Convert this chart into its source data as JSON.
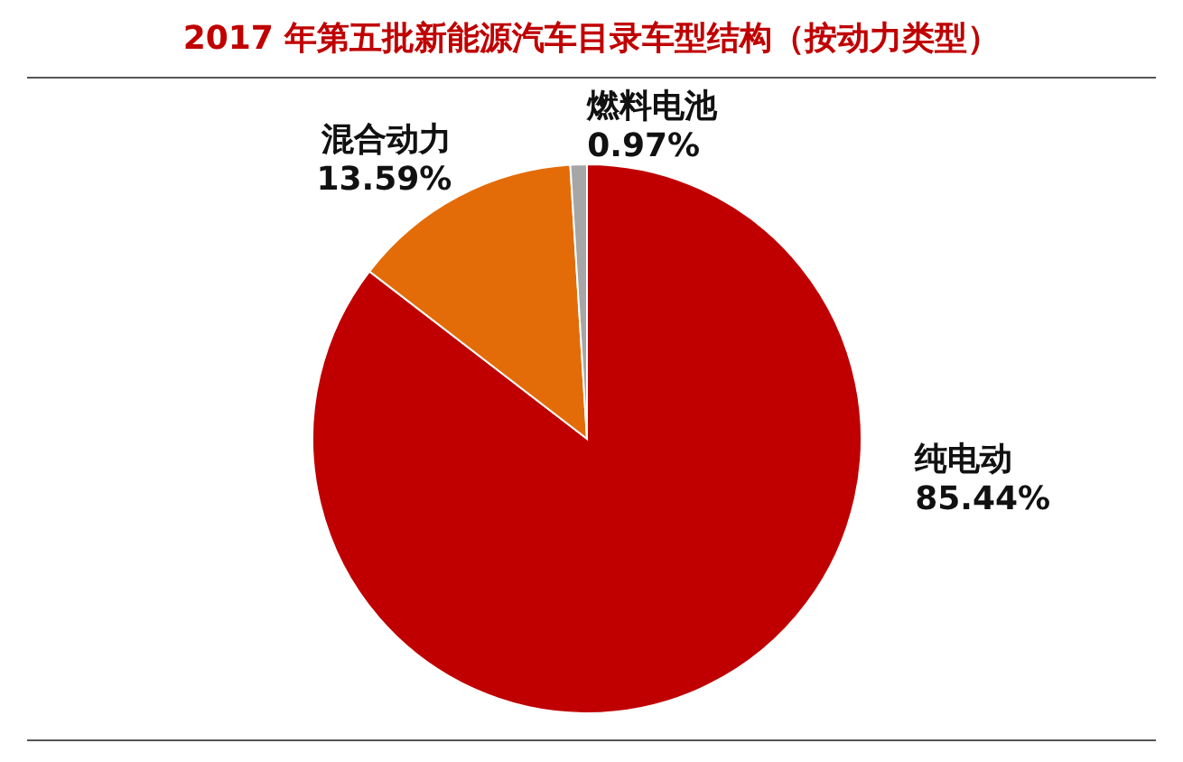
{
  "chart_data": {
    "type": "pie",
    "title": "2017 年第五批新能源汽车目录车型结构（按动力类型）",
    "categories": [
      "纯电动",
      "混合动力",
      "燃料电池"
    ],
    "values": [
      85.44,
      13.59,
      0.97
    ],
    "value_labels": [
      "85.44%",
      "13.59%",
      "0.97%"
    ],
    "colors": [
      "#c00000",
      "#e36c09",
      "#a6a6a6"
    ]
  }
}
